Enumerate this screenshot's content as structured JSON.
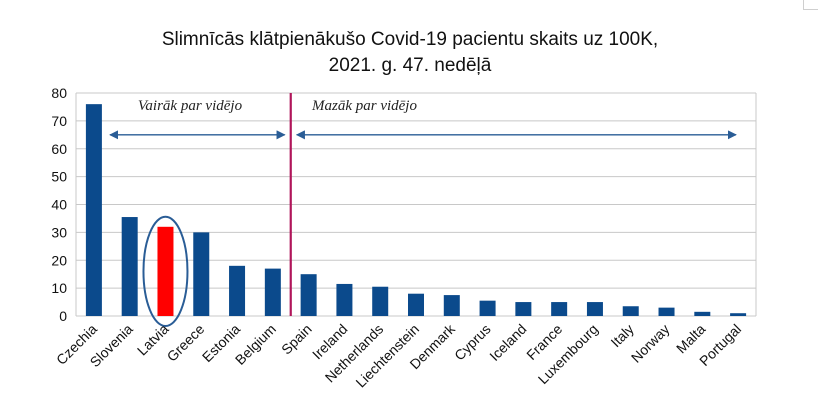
{
  "chart_data": {
    "type": "bar",
    "title_lines": [
      "Slimnīcās klātpienākušo Covid-19 pacientu skaits uz 100K,",
      "2021. g. 47. nedēļā"
    ],
    "categories": [
      "Czechia",
      "Slovenia",
      "Latvia",
      "Greece",
      "Estonia",
      "Belgium",
      "Spain",
      "Ireland",
      "Netherlands",
      "Liechtenstein",
      "Denmark",
      "Cyprus",
      "Iceland",
      "France",
      "Luxembourg",
      "Italy",
      "Norway",
      "Malta",
      "Portugal"
    ],
    "values": [
      76,
      35.5,
      32,
      30,
      18,
      17,
      15,
      11.5,
      10.5,
      8,
      7.5,
      5.5,
      5,
      5,
      5,
      3.5,
      3,
      1.5,
      1
    ],
    "ylim": [
      0,
      80
    ],
    "yticks": [
      0,
      10,
      20,
      30,
      40,
      50,
      60,
      70,
      80
    ],
    "grid": true,
    "colors": {
      "bar": "#0b4a8c",
      "highlight_bar": "#ff0000",
      "divider": "#b0155a",
      "arrow": "#2a5d96",
      "highlight_ring": "#2a5d96"
    },
    "highlight_category": "Latvia",
    "divider_between": [
      "Belgium",
      "Spain"
    ],
    "annotations": {
      "above_average": "Vairāk par vidējo",
      "below_average": "Mazāk par vidējo"
    }
  }
}
